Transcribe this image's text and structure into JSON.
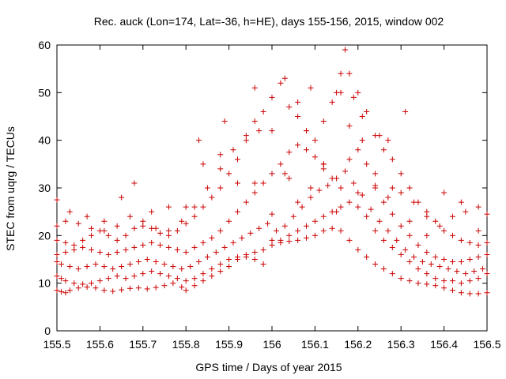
{
  "chart_data": {
    "type": "scatter",
    "title": "Rec. auck (Lon=174, Lat=-36, h=HE), days 155-156, 2015, window 002",
    "xlabel": "GPS time / Days of year 2015",
    "ylabel": "STEC from uqrg / TECUs",
    "xlim": [
      155.5,
      156.5
    ],
    "ylim": [
      0,
      60
    ],
    "x_ticks": [
      "155.5",
      "155.6",
      "155.7",
      "155.8",
      "155.9",
      "156",
      "156.1",
      "156.2",
      "156.3",
      "156.4",
      "156.5"
    ],
    "y_ticks": [
      "0",
      "10",
      "20",
      "30",
      "40",
      "50",
      "60"
    ],
    "grid": false,
    "legend": "none",
    "marker": "+",
    "color": "#cc0000",
    "series": [
      {
        "x": [
          155.5,
          155.51,
          155.52,
          155.53,
          155.55,
          155.57,
          155.59,
          155.61,
          155.63,
          155.65,
          155.67,
          155.69,
          155.71,
          155.73,
          155.75,
          155.77,
          155.79,
          155.8,
          155.82,
          155.84,
          155.86,
          155.88,
          155.9,
          155.92,
          155.94,
          155.96,
          155.98,
          156.0,
          156.02,
          156.04,
          156.06,
          156.08,
          156.1,
          156.12,
          156.14,
          156.16,
          156.18,
          156.2,
          156.22,
          156.24,
          156.26,
          156.28,
          156.3,
          156.32,
          156.34,
          156.36,
          156.38,
          156.4,
          156.42,
          156.44,
          156.46,
          156.48,
          156.5
        ],
        "y": [
          8.5,
          8.2,
          8.0,
          8.5,
          9.0,
          9.2,
          9.0,
          8.5,
          8.3,
          8.6,
          8.9,
          9.0,
          8.8,
          9.1,
          9.5,
          10.0,
          9.2,
          8.5,
          9.5,
          10.5,
          11.5,
          12.5,
          13.5,
          15.0,
          16.0,
          16.5,
          17.0,
          18.0,
          18.5,
          18.8,
          19.0,
          19.5,
          20.0,
          21.0,
          21.5,
          21.0,
          19.0,
          17.0,
          15.5,
          14.0,
          13.0,
          12.0,
          11.0,
          10.5,
          10.0,
          9.8,
          9.5,
          9.0,
          8.5,
          8.0,
          7.8,
          7.8,
          8.0
        ]
      },
      {
        "x": [
          155.5,
          155.51,
          155.52,
          155.54,
          155.56,
          155.58,
          155.6,
          155.62,
          155.64,
          155.66,
          155.68,
          155.7,
          155.72,
          155.74,
          155.76,
          155.78,
          155.8,
          155.82,
          155.84,
          155.86,
          155.88,
          155.9,
          155.92,
          155.94,
          155.96,
          155.98,
          156.0,
          156.02,
          156.04,
          156.06,
          156.08,
          156.1,
          156.12,
          156.14,
          156.16,
          156.18,
          156.2,
          156.22,
          156.24,
          156.26,
          156.28,
          156.3,
          156.32,
          156.34,
          156.36,
          156.38,
          156.4,
          156.42,
          156.44,
          156.46,
          156.48,
          156.5
        ],
        "y": [
          11.5,
          11.0,
          10.5,
          10.0,
          9.8,
          10.0,
          10.5,
          11.0,
          11.5,
          11.0,
          11.5,
          12.0,
          12.5,
          12.0,
          11.5,
          11.0,
          10.5,
          11.0,
          12.0,
          13.0,
          14.0,
          15.0,
          15.5,
          15.5,
          15.0,
          14.0,
          19.0,
          19.0,
          20.0,
          21.0,
          22.0,
          23.0,
          24.0,
          25.0,
          26.0,
          27.0,
          26.0,
          24.0,
          21.0,
          19.0,
          17.5,
          16.0,
          14.5,
          13.0,
          12.0,
          11.0,
          10.5,
          10.5,
          10.0,
          10.5,
          11.0,
          12.0
        ]
      },
      {
        "x": [
          155.5,
          155.51,
          155.53,
          155.55,
          155.57,
          155.59,
          155.61,
          155.63,
          155.65,
          155.67,
          155.69,
          155.71,
          155.73,
          155.75,
          155.77,
          155.79,
          155.81,
          155.83,
          155.85,
          155.87,
          155.89,
          155.91,
          155.93,
          155.95,
          155.97,
          155.99,
          156.01,
          156.03,
          156.05,
          156.07,
          156.09,
          156.11,
          156.13,
          156.15,
          156.17,
          156.19,
          156.21,
          156.23,
          156.25,
          156.27,
          156.29,
          156.31,
          156.33,
          156.35,
          156.37,
          156.39,
          156.41,
          156.43,
          156.45,
          156.47,
          156.49
        ],
        "y": [
          14.5,
          14.0,
          13.5,
          13.0,
          13.5,
          14.0,
          13.5,
          13.0,
          13.5,
          14.0,
          14.5,
          15.0,
          14.5,
          14.0,
          13.5,
          13.0,
          13.5,
          14.5,
          15.5,
          16.5,
          17.5,
          18.5,
          19.5,
          20.5,
          21.5,
          22.5,
          21.0,
          22.0,
          24.0,
          26.0,
          28.0,
          29.5,
          30.5,
          32.0,
          33.5,
          31.0,
          28.5,
          25.5,
          23.0,
          21.0,
          19.0,
          17.0,
          15.5,
          14.5,
          14.0,
          13.5,
          13.0,
          12.5,
          12.0,
          12.5,
          13.0
        ]
      },
      {
        "x": [
          155.5,
          155.52,
          155.54,
          155.56,
          155.58,
          155.6,
          155.62,
          155.64,
          155.66,
          155.68,
          155.7,
          155.72,
          155.74,
          155.76,
          155.78,
          155.8,
          155.82,
          155.84,
          155.86,
          155.88,
          155.9,
          155.92,
          155.94,
          155.96,
          155.98,
          156.0,
          156.02,
          156.04,
          156.06,
          156.08,
          156.1,
          156.12,
          156.14,
          156.16,
          156.18,
          156.2,
          156.22,
          156.24,
          156.26,
          156.28,
          156.3,
          156.32,
          156.34,
          156.36,
          156.38,
          156.4,
          156.42,
          156.44,
          156.46,
          156.48,
          156.5
        ],
        "y": [
          16.0,
          16.5,
          17.0,
          17.5,
          17.0,
          16.5,
          16.0,
          16.5,
          17.0,
          17.5,
          18.0,
          18.5,
          18.0,
          17.5,
          17.0,
          16.5,
          17.5,
          18.5,
          19.5,
          21.0,
          23.0,
          25.0,
          27.0,
          29.0,
          31.0,
          33.0,
          35.0,
          37.5,
          39.0,
          38.0,
          36.5,
          34.0,
          32.0,
          30.0,
          36.0,
          38.0,
          35.0,
          30.5,
          27.0,
          24.5,
          22.0,
          20.0,
          18.0,
          16.5,
          15.5,
          15.0,
          14.5,
          14.5,
          15.0,
          15.5,
          16.0
        ]
      },
      {
        "x": [
          155.5,
          155.52,
          155.54,
          155.56,
          155.58,
          155.6,
          155.62,
          155.64,
          155.66,
          155.68,
          155.7,
          155.72,
          155.74,
          155.76,
          155.78,
          155.8,
          155.82,
          155.84,
          155.86,
          155.88,
          155.9,
          155.92,
          155.94,
          155.96,
          155.98,
          156.0,
          156.02,
          156.04,
          156.06,
          156.08,
          156.1,
          156.12,
          156.14,
          156.16,
          156.18,
          156.2,
          156.22,
          156.24,
          156.26,
          156.28,
          156.3,
          156.32,
          156.34,
          156.36,
          156.38,
          156.4,
          156.42,
          156.44,
          156.46,
          156.48,
          156.5
        ],
        "y": [
          19.0,
          18.5,
          18.0,
          19.0,
          20.0,
          21.0,
          20.0,
          19.0,
          20.0,
          21.5,
          22.0,
          21.5,
          20.5,
          20.0,
          21.0,
          22.5,
          24.0,
          26.0,
          28.0,
          30.0,
          33.0,
          36.0,
          40.0,
          44.0,
          46.0,
          49.0,
          52.0,
          47.0,
          45.0,
          42.0,
          40.0,
          44.0,
          48.0,
          50.0,
          54.0,
          50.0,
          46.0,
          41.0,
          38.0,
          36.0,
          33.0,
          30.0,
          27.0,
          25.0,
          23.0,
          21.0,
          20.0,
          19.0,
          18.5,
          18.0,
          18.5
        ]
      },
      {
        "x": [
          155.5,
          155.52,
          155.55,
          155.58,
          155.61,
          155.64,
          155.67,
          155.7,
          155.73,
          155.76,
          155.79,
          155.82,
          155.85,
          155.88,
          155.91,
          155.94,
          155.97,
          156.0,
          156.03,
          156.06,
          156.09,
          156.12,
          156.15,
          156.18,
          156.21,
          156.24,
          156.27,
          156.3,
          156.33,
          156.36,
          156.39,
          156.42,
          156.45,
          156.48,
          156.5
        ],
        "y": [
          22.0,
          23.0,
          22.5,
          21.5,
          21.0,
          22.0,
          24.0,
          23.0,
          21.5,
          21.0,
          23.0,
          26.0,
          30.0,
          34.0,
          38.0,
          41.0,
          42.0,
          24.5,
          33.0,
          27.0,
          30.0,
          35.0,
          25.0,
          43.0,
          40.0,
          30.0,
          28.0,
          29.0,
          27.0,
          24.0,
          22.0,
          24.0,
          25.0,
          26.0,
          24.5
        ]
      },
      {
        "x": [
          155.5,
          155.53,
          155.57,
          155.61,
          155.65,
          155.68,
          155.72,
          155.76,
          155.8,
          155.84,
          155.88,
          155.92,
          155.96,
          156.0,
          156.04,
          156.08,
          156.12,
          156.16,
          156.2,
          156.24,
          156.28,
          156.32,
          156.36,
          156.4,
          156.44,
          156.48
        ],
        "y": [
          27.5,
          25.0,
          24.0,
          23.0,
          28.0,
          31.0,
          25.0,
          26.0,
          26.0,
          35.0,
          37.0,
          31.0,
          31.0,
          42.0,
          32.0,
          42.0,
          35.0,
          54.0,
          29.0,
          33.0,
          30.0,
          23.0,
          20.0,
          29.0,
          27.0,
          21.0
        ]
      }
    ],
    "outliers": {
      "x": [
        155.83,
        155.89,
        155.96,
        156.03,
        156.06,
        156.09,
        156.15,
        156.17,
        156.19,
        156.21,
        156.25,
        156.27,
        156.31
      ],
      "y": [
        40.0,
        44.0,
        51.0,
        53.0,
        48.0,
        51.0,
        50.0,
        59.0,
        49.0,
        45.0,
        41.0,
        40.0,
        46.0
      ]
    }
  }
}
